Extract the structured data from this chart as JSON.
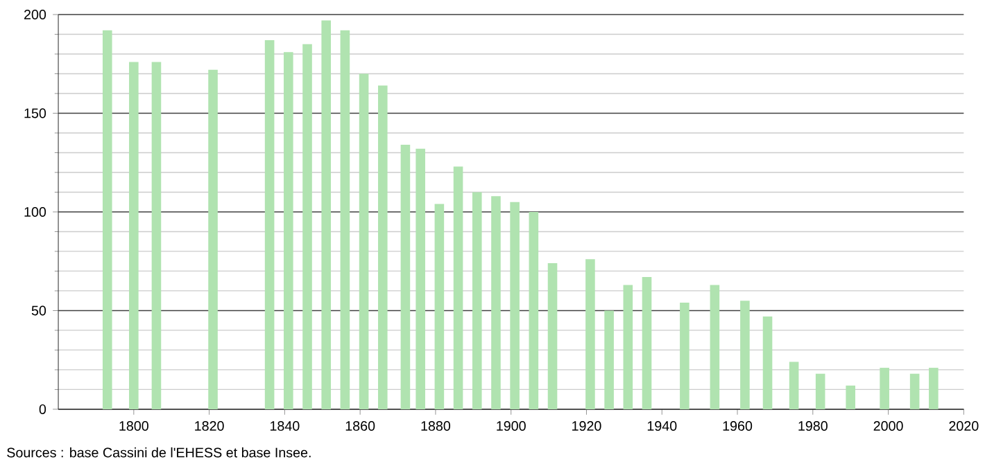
{
  "chart_data": {
    "type": "bar",
    "x": [
      1793,
      1800,
      1806,
      1821,
      1836,
      1841,
      1846,
      1851,
      1856,
      1861,
      1866,
      1872,
      1876,
      1881,
      1886,
      1891,
      1896,
      1901,
      1906,
      1911,
      1921,
      1926,
      1931,
      1936,
      1946,
      1954,
      1962,
      1968,
      1975,
      1982,
      1990,
      1999,
      2007,
      2012
    ],
    "values": [
      192,
      176,
      176,
      172,
      187,
      181,
      185,
      197,
      192,
      170,
      164,
      134,
      132,
      104,
      123,
      110,
      108,
      105,
      100,
      74,
      76,
      50,
      63,
      67,
      54,
      63,
      55,
      47,
      24,
      18,
      12,
      21,
      18,
      21
    ],
    "color": "#b0e3b0",
    "xlim": [
      1780,
      2020
    ],
    "xticks": [
      1800,
      1820,
      1840,
      1860,
      1880,
      1900,
      1920,
      1940,
      1960,
      1980,
      2000,
      2020
    ],
    "ylim": [
      0,
      200
    ],
    "yticks": [
      0,
      50,
      100,
      150,
      200
    ],
    "grid": "y",
    "annotations": [
      "Sources : base Cassini de l'EHESS et base Insee."
    ]
  }
}
